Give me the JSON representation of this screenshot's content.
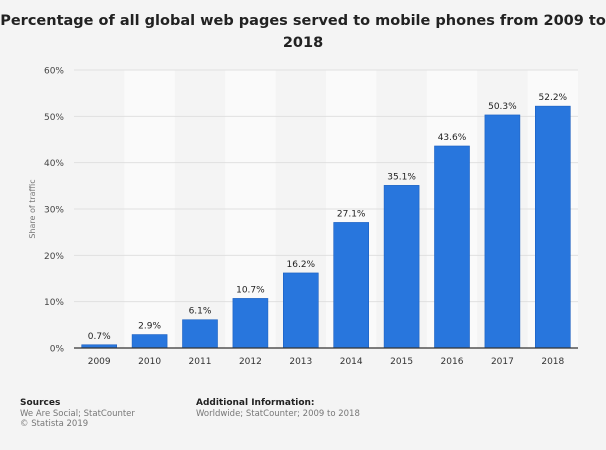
{
  "chart_data": {
    "type": "bar",
    "title": "Percentage of all global web pages served to mobile phones from 2009 to 2018",
    "xlabel": "",
    "ylabel": "Share of traffic",
    "categories": [
      "2009",
      "2010",
      "2011",
      "2012",
      "2013",
      "2014",
      "2015",
      "2016",
      "2017",
      "2018"
    ],
    "values": [
      0.7,
      2.9,
      6.1,
      10.7,
      16.2,
      27.1,
      35.1,
      43.6,
      50.3,
      52.2
    ],
    "data_labels": [
      "0.7%",
      "2.9%",
      "6.1%",
      "10.7%",
      "16.2%",
      "27.1%",
      "35.1%",
      "43.6%",
      "50.3%",
      "52.2%"
    ],
    "ylim": [
      0,
      60
    ],
    "yticks": [
      "0%",
      "10%",
      "20%",
      "30%",
      "40%",
      "50%",
      "60%"
    ],
    "grid": true,
    "bar_color": "#2876dd"
  },
  "footer": {
    "sources_heading": "Sources",
    "sources": "We Are Social; StatCounter",
    "copyright": "© Statista 2019",
    "info_heading": "Additional Information:",
    "info": "Worldwide; StatCounter; 2009 to 2018"
  }
}
